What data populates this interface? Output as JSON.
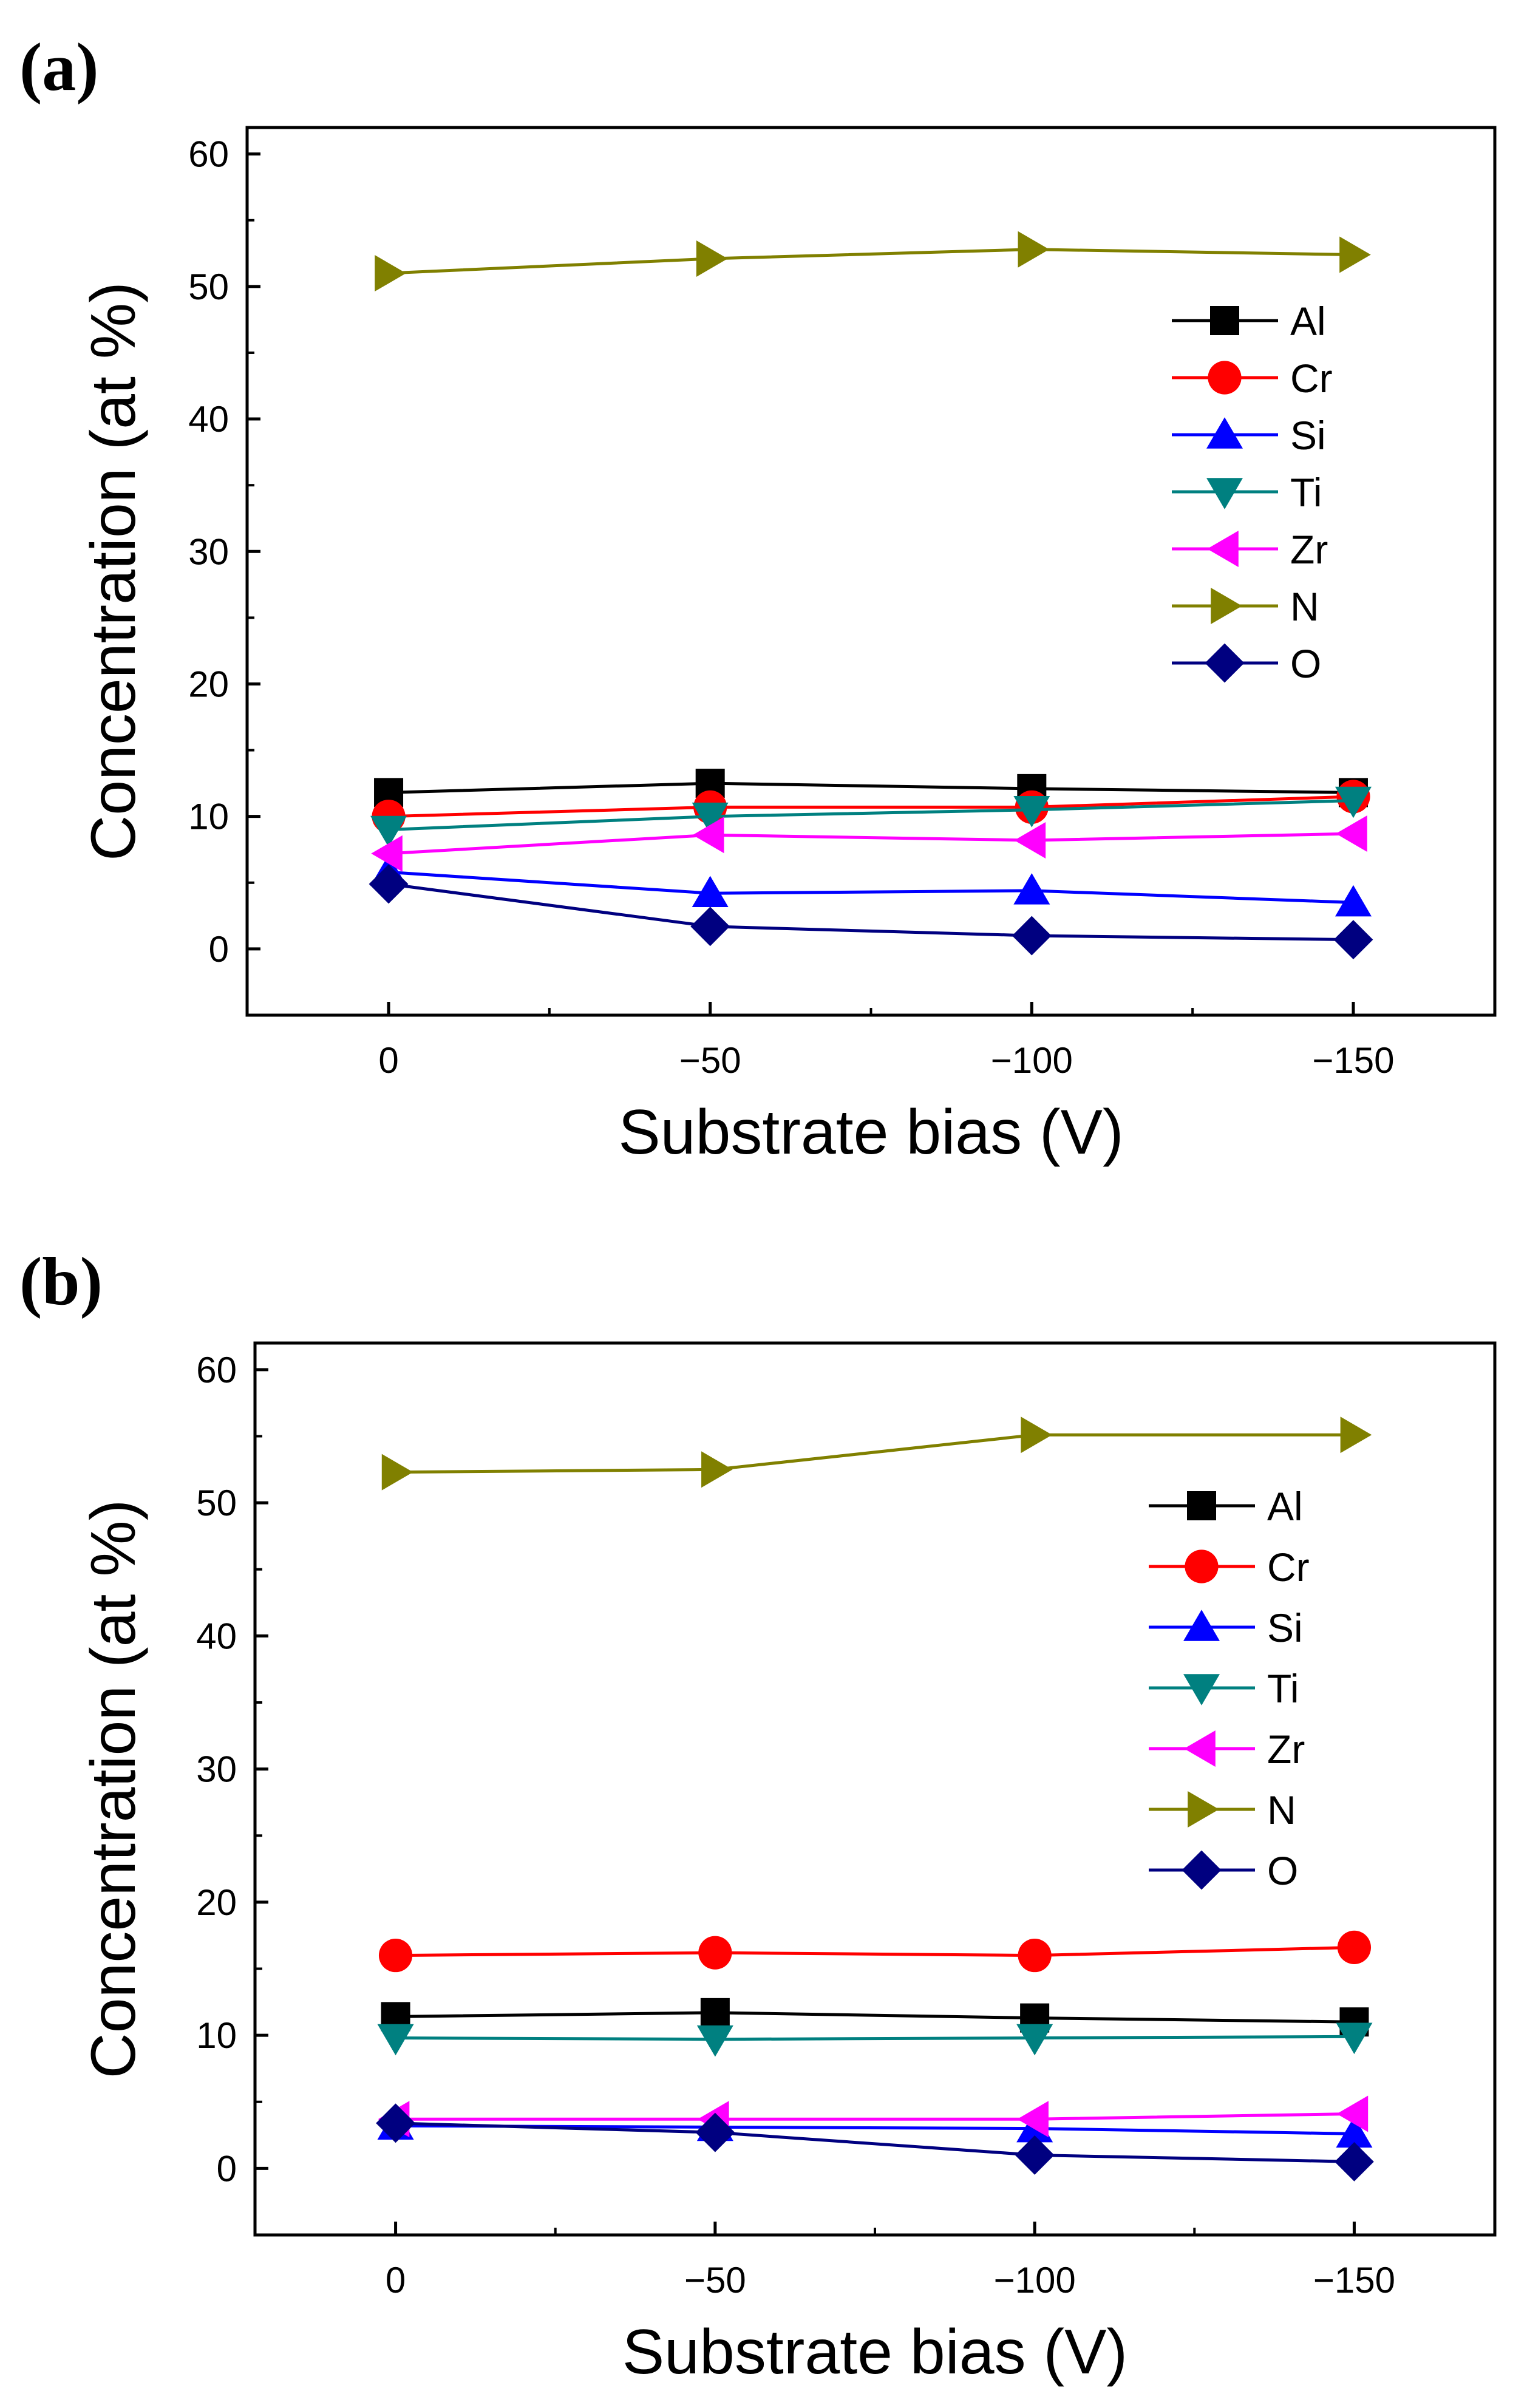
{
  "colors": {
    "Al": "#000000",
    "Cr": "#ff0000",
    "Si": "#0000ff",
    "Ti": "#008080",
    "Zr": "#ff00ff",
    "N": "#808000",
    "O": "#000080"
  },
  "chart_data": [
    {
      "type": "line",
      "panel_label": "(a)",
      "xlabel": "Substrate bias (V)",
      "ylabel": "Concentration (at %)",
      "x": [
        0,
        -50,
        -100,
        -150
      ],
      "x_tick_labels": [
        "0",
        "−50",
        "−100",
        "−150"
      ],
      "y_ticks": [
        0,
        10,
        20,
        30,
        40,
        50,
        60
      ],
      "y_tick_labels": [
        "0",
        "10",
        "20",
        "30",
        "40",
        "50",
        "60"
      ],
      "ylim": [
        -5,
        62
      ],
      "legend_position": "right",
      "series": [
        {
          "name": "Al",
          "marker": "square",
          "values": [
            11.8,
            12.5,
            12.1,
            11.8
          ]
        },
        {
          "name": "Cr",
          "marker": "circle",
          "values": [
            10.0,
            10.7,
            10.7,
            11.5
          ]
        },
        {
          "name": "Si",
          "marker": "triangle-up",
          "values": [
            5.8,
            4.2,
            4.4,
            3.5
          ]
        },
        {
          "name": "Ti",
          "marker": "triangle-down",
          "values": [
            9.0,
            10.0,
            10.5,
            11.2
          ]
        },
        {
          "name": "Zr",
          "marker": "triangle-left",
          "values": [
            7.2,
            8.6,
            8.2,
            8.7
          ]
        },
        {
          "name": "N",
          "marker": "triangle-right",
          "values": [
            51.0,
            52.1,
            52.8,
            52.4
          ]
        },
        {
          "name": "O",
          "marker": "diamond",
          "values": [
            4.9,
            1.7,
            1.0,
            0.7
          ]
        }
      ]
    },
    {
      "type": "line",
      "panel_label": "(b)",
      "xlabel": "Substrate bias (V)",
      "ylabel": "Concentration (at %)",
      "x": [
        0,
        -50,
        -100,
        -150
      ],
      "x_tick_labels": [
        "0",
        "−50",
        "−100",
        "−150"
      ],
      "y_ticks": [
        0,
        10,
        20,
        30,
        40,
        50,
        60
      ],
      "y_tick_labels": [
        "0",
        "10",
        "20",
        "30",
        "40",
        "50",
        "60"
      ],
      "ylim": [
        -5,
        62
      ],
      "legend_position": "right",
      "series": [
        {
          "name": "Al",
          "marker": "square",
          "values": [
            11.4,
            11.7,
            11.3,
            11.0
          ]
        },
        {
          "name": "Cr",
          "marker": "circle",
          "values": [
            16.0,
            16.2,
            16.0,
            16.6
          ]
        },
        {
          "name": "Si",
          "marker": "triangle-up",
          "values": [
            3.2,
            3.1,
            3.0,
            2.6
          ]
        },
        {
          "name": "Ti",
          "marker": "triangle-down",
          "values": [
            9.8,
            9.7,
            9.8,
            9.9
          ]
        },
        {
          "name": "Zr",
          "marker": "triangle-left",
          "values": [
            3.7,
            3.7,
            3.7,
            4.1
          ]
        },
        {
          "name": "N",
          "marker": "triangle-right",
          "values": [
            52.3,
            52.5,
            55.1,
            55.1
          ]
        },
        {
          "name": "O",
          "marker": "diamond",
          "values": [
            3.4,
            2.7,
            1.0,
            0.5
          ]
        }
      ]
    }
  ]
}
